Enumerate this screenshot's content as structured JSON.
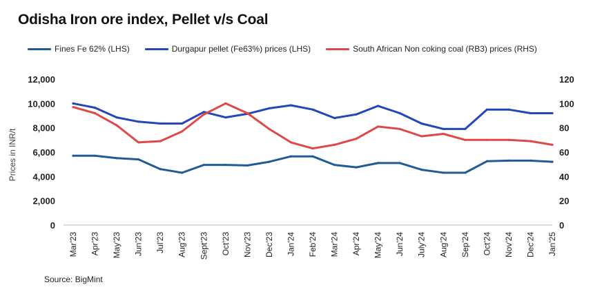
{
  "title": "Odisha Iron ore index, Pellet v/s Coal",
  "source": "Source: BigMint",
  "chart_data": {
    "type": "line",
    "title": "Odisha Iron ore index, Pellet v/s Coal",
    "ylabel": "Prices in INR/t",
    "ylabel_right": "",
    "categories": [
      "Mar'23",
      "Apr'23",
      "May'23",
      "Jun'23",
      "Jul'23",
      "Aug'23",
      "Sept'23",
      "Oct'23",
      "Nov'23",
      "Dec'23",
      "Jan'24",
      "Feb'24",
      "Mar'24",
      "Apr'24",
      "May'24",
      "Jun'24",
      "July'24",
      "Aug'24",
      "Sep'24",
      "Oct'24",
      "Nov'24",
      "Dec'24",
      "Jan'25"
    ],
    "ylim": [
      0,
      12000
    ],
    "yticks": [
      0,
      2000,
      4000,
      6000,
      8000,
      10000,
      12000
    ],
    "ytick_labels": [
      "0",
      "2,000",
      "4,000",
      "6,000",
      "8,000",
      "10,000",
      "12,000"
    ],
    "ylim_right": [
      0,
      120
    ],
    "yticks_right": [
      0,
      20,
      40,
      60,
      80,
      100,
      120
    ],
    "grid": false,
    "legend_position": "top",
    "series": [
      {
        "name": "Fines Fe 62% (LHS)",
        "axis": "left",
        "color": "#1f5b94",
        "values": [
          5700,
          5700,
          5500,
          5400,
          4600,
          4300,
          4950,
          4950,
          4900,
          5200,
          5650,
          5650,
          4950,
          4750,
          5100,
          5100,
          4550,
          4300,
          4300,
          5250,
          5300,
          5300,
          5200
        ]
      },
      {
        "name": "Durgapur pellet (Fe63%) prices (LHS)",
        "axis": "left",
        "color": "#2346b8",
        "values": [
          10000,
          9650,
          8850,
          8500,
          8350,
          8350,
          9300,
          8850,
          9150,
          9600,
          9850,
          9500,
          8800,
          9100,
          9800,
          9200,
          8350,
          7900,
          7900,
          9500,
          9500,
          9200,
          9200
        ]
      },
      {
        "name": "South African Non coking coal (RB3) prices (RHS)",
        "axis": "right",
        "color": "#e04848",
        "values": [
          97,
          92,
          82,
          68,
          69,
          77,
          91,
          100,
          92,
          79,
          68,
          63,
          66,
          71,
          81,
          79,
          73,
          75,
          70,
          70,
          70,
          69,
          66
        ]
      }
    ]
  }
}
